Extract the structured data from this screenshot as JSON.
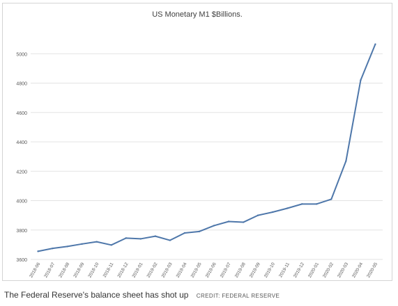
{
  "chart_data": {
    "type": "line",
    "title": "US Monetary M1 $Billions.",
    "xlabel": "",
    "ylabel": "",
    "ylim": [
      3600,
      5200
    ],
    "yticks": [
      3600,
      3800,
      4000,
      4200,
      4400,
      4600,
      4800,
      5000
    ],
    "grid": true,
    "legend": "none",
    "color": "#4e77aa",
    "x": [
      "2018-06",
      "2018-07",
      "2018-08",
      "2018-09",
      "2018-10",
      "2018-11",
      "2018-12",
      "2019-01",
      "2019-02",
      "2019-03",
      "2019-04",
      "2019-05",
      "2019-06",
      "2019-07",
      "2019-08",
      "2019-09",
      "2019-10",
      "2019-11",
      "2019-12",
      "2020-01",
      "2020-02",
      "2020-03",
      "2020-04",
      "2020-05"
    ],
    "series": [
      {
        "values": [
          3655,
          3675,
          3688,
          3705,
          3720,
          3698,
          3745,
          3740,
          3758,
          3730,
          3780,
          3790,
          3830,
          3858,
          3853,
          3900,
          3922,
          3948,
          3977,
          3977,
          4010,
          4270,
          4820,
          5065
        ]
      }
    ]
  },
  "caption": {
    "text": "The Federal Reserve's balance sheet has shot up",
    "credit": "CREDIT: FEDERAL RESERVE"
  }
}
